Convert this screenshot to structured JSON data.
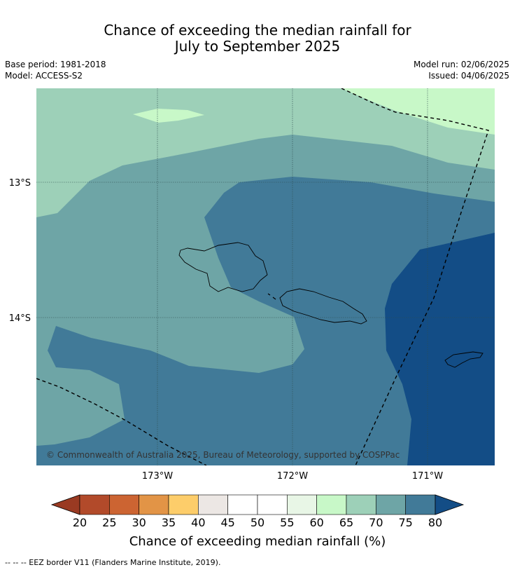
{
  "title_line1": "Chance of exceeding the median rainfall for",
  "title_line2": "July to September 2025",
  "base_period": "Base period: 1981-2018",
  "model": "Model: ACCESS-S2",
  "model_run": "Model run: 02/06/2025",
  "issued": "Issued: 04/06/2025",
  "map": {
    "lat_labels": [
      "13°S",
      "14°S"
    ],
    "lon_labels": [
      "173°W",
      "172°W",
      "171°W"
    ],
    "copyright": "© Commonwealth of Australia 2025, Bureau of Meteorology, supported by COSPPac"
  },
  "colorbar": {
    "ticks": [
      "20",
      "25",
      "30",
      "35",
      "40",
      "45",
      "50",
      "55",
      "60",
      "65",
      "70",
      "75",
      "80"
    ],
    "colors": [
      "#b24a2a",
      "#cc6432",
      "#e29446",
      "#fdcd6a",
      "#ece7e4",
      "#ffffff",
      "#ffffff",
      "#e8f6e6",
      "#c8f8c8",
      "#9dd0b8",
      "#6ea5a6",
      "#417a98"
    ],
    "under_color": "#9a3a22",
    "over_color": "#134d86",
    "title": "Chance of exceeding median rainfall (%)"
  },
  "footnote": "--  --  -- EEZ border V11 (Flanders Marine Institute, 2019)."
}
